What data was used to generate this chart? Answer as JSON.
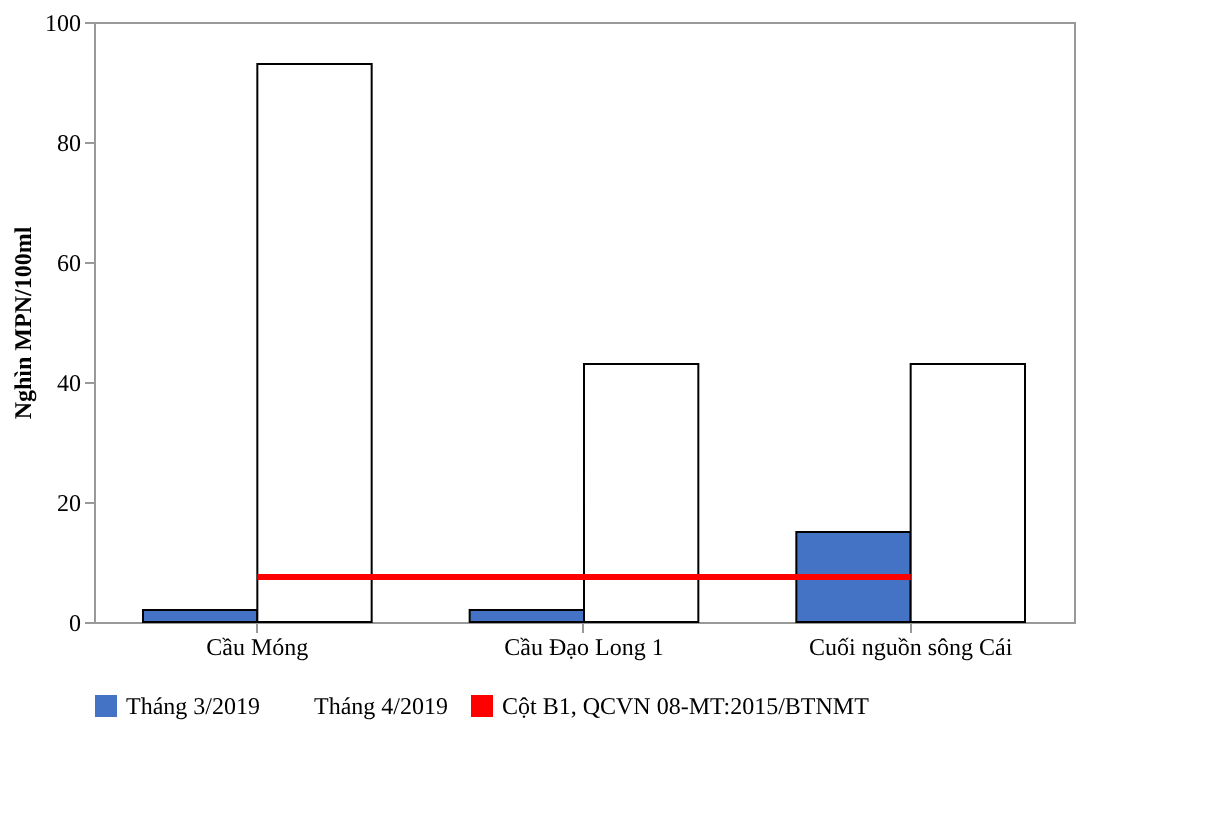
{
  "chart_data": {
    "type": "bar",
    "ylabel": "Nghìn MPN/100ml",
    "categories": [
      "Cầu Móng",
      "Cầu Đạo Long 1",
      "Cuối nguồn sông Cái"
    ],
    "series": [
      {
        "name": "Tháng 3/2019",
        "color": "#4472c4",
        "values": [
          2,
          2,
          15
        ]
      },
      {
        "name": "Tháng 4/2019",
        "color": "#ffffff",
        "values": [
          93,
          43,
          43
        ]
      },
      {
        "name": "Cột B1, QCVN 08-MT:2015/BTNMT",
        "color": "#ff0000",
        "type": "line",
        "values": [
          7.5,
          7.5,
          7.5
        ]
      }
    ],
    "ylim": [
      0,
      100
    ],
    "yticks": [
      0,
      20,
      40,
      60,
      80,
      100
    ],
    "grid": false,
    "legend": "bottom"
  }
}
